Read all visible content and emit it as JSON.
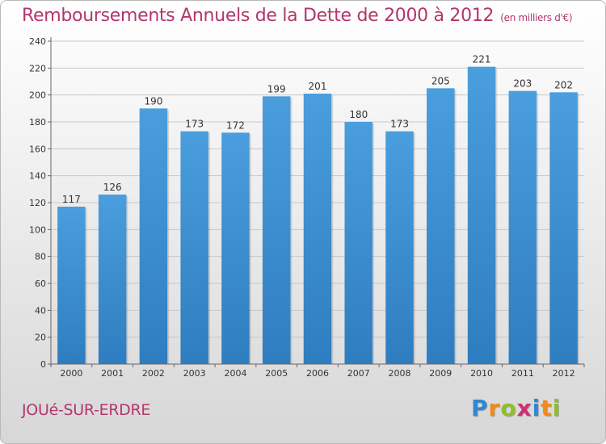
{
  "header": {
    "title": "Remboursements Annuels de la Dette de 2000 à 2012",
    "unit": "(en milliers d'€)"
  },
  "footer": {
    "town": "JOUé-SUR-ERDRE",
    "logo_letters": [
      "P",
      "r",
      "o",
      "x",
      "i",
      "t",
      "i"
    ],
    "logo_colors": [
      "#2e88d0",
      "#f08a1c",
      "#8ebf2a",
      "#d02f6f",
      "#2e88d0",
      "#f08a1c",
      "#8ebf2a"
    ]
  },
  "colors": {
    "bar": "#4a9edd",
    "bar_dark": "#2e7dc0",
    "accent": "#b3366c"
  },
  "chart_data": {
    "type": "bar",
    "title": "Remboursements Annuels de la Dette de 2000 à 2012",
    "xlabel": "",
    "ylabel": "",
    "categories": [
      "2000",
      "2001",
      "2002",
      "2003",
      "2004",
      "2005",
      "2006",
      "2007",
      "2008",
      "2009",
      "2010",
      "2011",
      "2012"
    ],
    "values": [
      117,
      126,
      190,
      173,
      172,
      199,
      201,
      180,
      173,
      205,
      221,
      203,
      202
    ],
    "ylim": [
      0,
      240
    ],
    "yticks": [
      0,
      20,
      40,
      60,
      80,
      100,
      120,
      140,
      160,
      180,
      200,
      220,
      240
    ],
    "grid": true,
    "data_labels": true
  }
}
